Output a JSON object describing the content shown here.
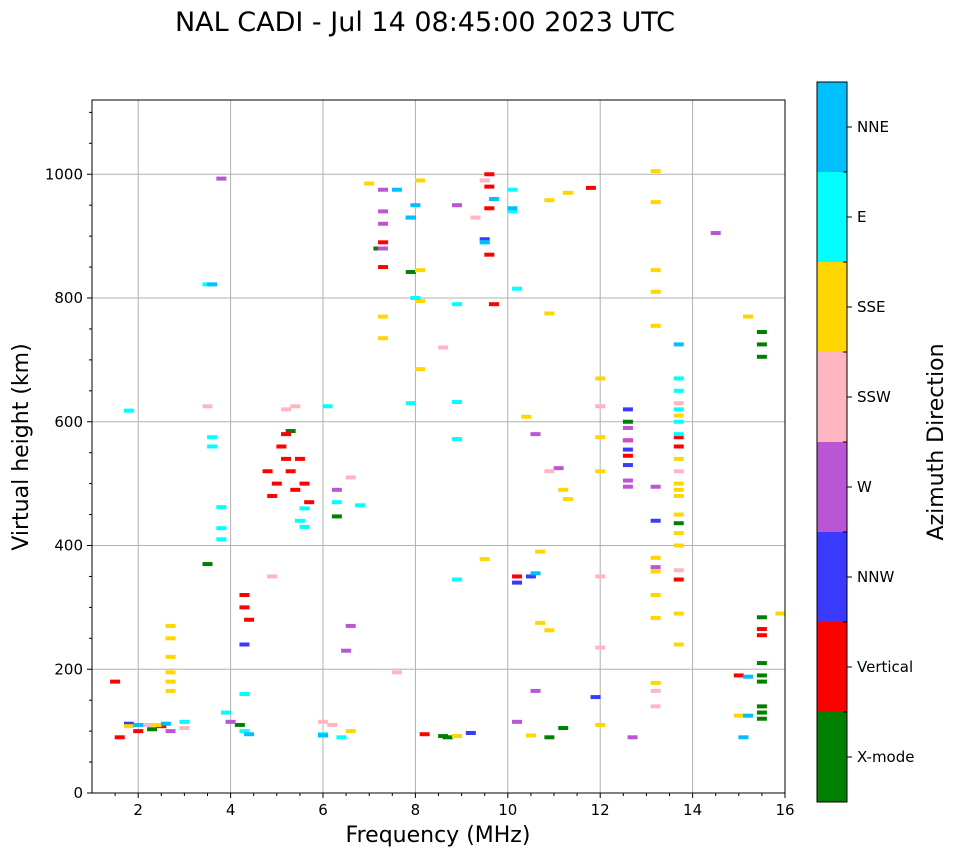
{
  "chart_data": {
    "type": "scatter",
    "title": "NAL CADI - Jul 14 08:45:00 2023 UTC",
    "xlabel": "Frequency (MHz)",
    "ylabel": "Virtual height (km)",
    "xlim": [
      1,
      16
    ],
    "ylim": [
      0,
      1120
    ],
    "xticks": [
      2,
      4,
      6,
      8,
      10,
      12,
      14,
      16
    ],
    "yticks": [
      0,
      200,
      400,
      600,
      800,
      1000
    ],
    "grid": true,
    "colorbar": {
      "title": "Azimuth Direction",
      "categories": [
        {
          "name": "NNE",
          "color": "#00bfff"
        },
        {
          "name": "E",
          "color": "#00ffff"
        },
        {
          "name": "SSE",
          "color": "#ffd700"
        },
        {
          "name": "SSW",
          "color": "#ffb6c1"
        },
        {
          "name": "W",
          "color": "#ba55d3"
        },
        {
          "name": "NNW",
          "color": "#3a3aff"
        },
        {
          "name": "Vertical",
          "color": "#ff0000"
        },
        {
          "name": "X-mode",
          "color": "#008000"
        }
      ]
    },
    "series": [
      {
        "name": "X-mode",
        "points": [
          [
            3.5,
            370
          ],
          [
            5.3,
            585
          ],
          [
            6.3,
            447
          ],
          [
            7.2,
            880
          ],
          [
            7.9,
            842
          ],
          [
            8.6,
            92
          ],
          [
            8.7,
            90
          ],
          [
            10.9,
            90
          ],
          [
            11.2,
            105
          ],
          [
            12.6,
            600
          ],
          [
            13.7,
            436
          ],
          [
            15.5,
            140
          ],
          [
            15.5,
            130
          ],
          [
            15.5,
            120
          ],
          [
            15.5,
            210
          ],
          [
            15.5,
            190
          ],
          [
            15.5,
            180
          ],
          [
            15.5,
            284
          ],
          [
            15.5,
            745
          ],
          [
            15.5,
            725
          ],
          [
            15.5,
            705
          ],
          [
            4.2,
            110
          ],
          [
            2.3,
            103
          ]
        ]
      },
      {
        "name": "Vertical",
        "points": [
          [
            1.5,
            180
          ],
          [
            1.6,
            90
          ],
          [
            2.0,
            100
          ],
          [
            2.5,
            108
          ],
          [
            4.3,
            300
          ],
          [
            4.3,
            320
          ],
          [
            4.4,
            280
          ],
          [
            4.8,
            520
          ],
          [
            4.9,
            480
          ],
          [
            5.0,
            500
          ],
          [
            5.1,
            560
          ],
          [
            5.2,
            540
          ],
          [
            5.2,
            580
          ],
          [
            5.3,
            520
          ],
          [
            5.4,
            490
          ],
          [
            5.5,
            540
          ],
          [
            5.6,
            500
          ],
          [
            5.7,
            470
          ],
          [
            7.3,
            850
          ],
          [
            7.3,
            890
          ],
          [
            7.9,
            930
          ],
          [
            8.2,
            95
          ],
          [
            9.6,
            1000
          ],
          [
            9.6,
            980
          ],
          [
            9.6,
            945
          ],
          [
            9.6,
            870
          ],
          [
            9.7,
            790
          ],
          [
            10.2,
            350
          ],
          [
            11.8,
            978
          ],
          [
            12.6,
            570
          ],
          [
            12.6,
            545
          ],
          [
            13.7,
            575
          ],
          [
            13.7,
            560
          ],
          [
            13.7,
            345
          ],
          [
            15.5,
            265
          ],
          [
            15.5,
            255
          ],
          [
            15.0,
            190
          ]
        ]
      },
      {
        "name": "NNW",
        "points": [
          [
            4.3,
            240
          ],
          [
            9.5,
            895
          ],
          [
            10.2,
            340
          ],
          [
            10.5,
            350
          ],
          [
            11.9,
            155
          ],
          [
            12.6,
            530
          ],
          [
            12.6,
            555
          ],
          [
            12.6,
            620
          ],
          [
            13.2,
            440
          ],
          [
            9.2,
            97
          ],
          [
            1.8,
            112
          ]
        ]
      },
      {
        "name": "W",
        "points": [
          [
            3.8,
            993
          ],
          [
            6.3,
            490
          ],
          [
            6.6,
            270
          ],
          [
            6.5,
            230
          ],
          [
            7.3,
            975
          ],
          [
            7.3,
            940
          ],
          [
            7.3,
            920
          ],
          [
            7.3,
            880
          ],
          [
            8.9,
            950
          ],
          [
            10.2,
            115
          ],
          [
            10.6,
            580
          ],
          [
            10.6,
            165
          ],
          [
            11.1,
            525
          ],
          [
            12.7,
            90
          ],
          [
            12.6,
            590
          ],
          [
            12.6,
            570
          ],
          [
            12.6,
            505
          ],
          [
            12.6,
            495
          ],
          [
            13.2,
            495
          ],
          [
            13.2,
            365
          ],
          [
            14.5,
            905
          ],
          [
            2.7,
            100
          ],
          [
            4.0,
            115
          ]
        ]
      },
      {
        "name": "SSW",
        "points": [
          [
            3.5,
            625
          ],
          [
            4.9,
            350
          ],
          [
            5.2,
            620
          ],
          [
            5.4,
            625
          ],
          [
            6.6,
            510
          ],
          [
            7.6,
            195
          ],
          [
            8.6,
            720
          ],
          [
            9.3,
            930
          ],
          [
            9.5,
            990
          ],
          [
            10.9,
            520
          ],
          [
            12.0,
            625
          ],
          [
            12.0,
            350
          ],
          [
            12.0,
            235
          ],
          [
            13.2,
            165
          ],
          [
            13.2,
            140
          ],
          [
            13.7,
            630
          ],
          [
            13.7,
            520
          ],
          [
            13.7,
            360
          ],
          [
            6.0,
            115
          ],
          [
            6.2,
            110
          ],
          [
            2.2,
            110
          ],
          [
            3.0,
            105
          ]
        ]
      },
      {
        "name": "SSE",
        "points": [
          [
            2.7,
            270
          ],
          [
            2.7,
            250
          ],
          [
            2.7,
            220
          ],
          [
            2.7,
            195
          ],
          [
            2.7,
            180
          ],
          [
            2.7,
            165
          ],
          [
            7.0,
            985
          ],
          [
            7.3,
            770
          ],
          [
            7.3,
            735
          ],
          [
            8.1,
            990
          ],
          [
            8.1,
            845
          ],
          [
            8.1,
            795
          ],
          [
            8.1,
            685
          ],
          [
            9.5,
            378
          ],
          [
            10.4,
            608
          ],
          [
            10.5,
            93
          ],
          [
            10.7,
            390
          ],
          [
            10.7,
            275
          ],
          [
            10.9,
            958
          ],
          [
            10.9,
            775
          ],
          [
            10.9,
            263
          ],
          [
            11.2,
            490
          ],
          [
            11.3,
            475
          ],
          [
            11.3,
            970
          ],
          [
            12.0,
            670
          ],
          [
            12.0,
            575
          ],
          [
            12.0,
            520
          ],
          [
            12.0,
            110
          ],
          [
            13.2,
            1005
          ],
          [
            13.2,
            955
          ],
          [
            13.2,
            845
          ],
          [
            13.2,
            810
          ],
          [
            13.2,
            755
          ],
          [
            13.2,
            380
          ],
          [
            13.2,
            358
          ],
          [
            13.2,
            320
          ],
          [
            13.2,
            283
          ],
          [
            13.2,
            178
          ],
          [
            13.7,
            610
          ],
          [
            13.7,
            540
          ],
          [
            13.7,
            500
          ],
          [
            13.7,
            490
          ],
          [
            13.7,
            480
          ],
          [
            13.7,
            450
          ],
          [
            13.7,
            420
          ],
          [
            13.7,
            400
          ],
          [
            13.7,
            290
          ],
          [
            13.7,
            240
          ],
          [
            15.2,
            770
          ],
          [
            15.0,
            125
          ],
          [
            15.9,
            290
          ],
          [
            1.8,
            108
          ],
          [
            2.4,
            110
          ],
          [
            6.6,
            100
          ],
          [
            8.9,
            92
          ]
        ]
      },
      {
        "name": "E",
        "points": [
          [
            1.8,
            618
          ],
          [
            3.5,
            822
          ],
          [
            3.8,
            462
          ],
          [
            3.8,
            428
          ],
          [
            3.8,
            410
          ],
          [
            3.6,
            575
          ],
          [
            3.6,
            560
          ],
          [
            3.9,
            130
          ],
          [
            4.3,
            160
          ],
          [
            5.5,
            440
          ],
          [
            5.6,
            460
          ],
          [
            5.6,
            430
          ],
          [
            6.1,
            625
          ],
          [
            6.3,
            470
          ],
          [
            6.8,
            465
          ],
          [
            7.9,
            630
          ],
          [
            8.0,
            800
          ],
          [
            8.9,
            790
          ],
          [
            8.9,
            632
          ],
          [
            8.9,
            572
          ],
          [
            8.9,
            345
          ],
          [
            9.5,
            890
          ],
          [
            10.1,
            940
          ],
          [
            10.1,
            975
          ],
          [
            10.2,
            815
          ],
          [
            13.7,
            670
          ],
          [
            13.7,
            650
          ],
          [
            13.7,
            620
          ],
          [
            13.7,
            600
          ],
          [
            13.7,
            580
          ],
          [
            6.0,
            95
          ],
          [
            6.4,
            90
          ],
          [
            4.3,
            100
          ],
          [
            3.0,
            115
          ]
        ]
      },
      {
        "name": "NNE",
        "points": [
          [
            3.6,
            822
          ],
          [
            6.0,
            93
          ],
          [
            7.6,
            975
          ],
          [
            7.9,
            930
          ],
          [
            8.0,
            950
          ],
          [
            9.5,
            890
          ],
          [
            9.7,
            960
          ],
          [
            10.1,
            945
          ],
          [
            10.6,
            355
          ],
          [
            13.7,
            725
          ],
          [
            15.1,
            90
          ],
          [
            15.2,
            188
          ],
          [
            15.2,
            125
          ],
          [
            2.0,
            110
          ],
          [
            2.6,
            112
          ],
          [
            4.4,
            95
          ]
        ]
      }
    ]
  }
}
